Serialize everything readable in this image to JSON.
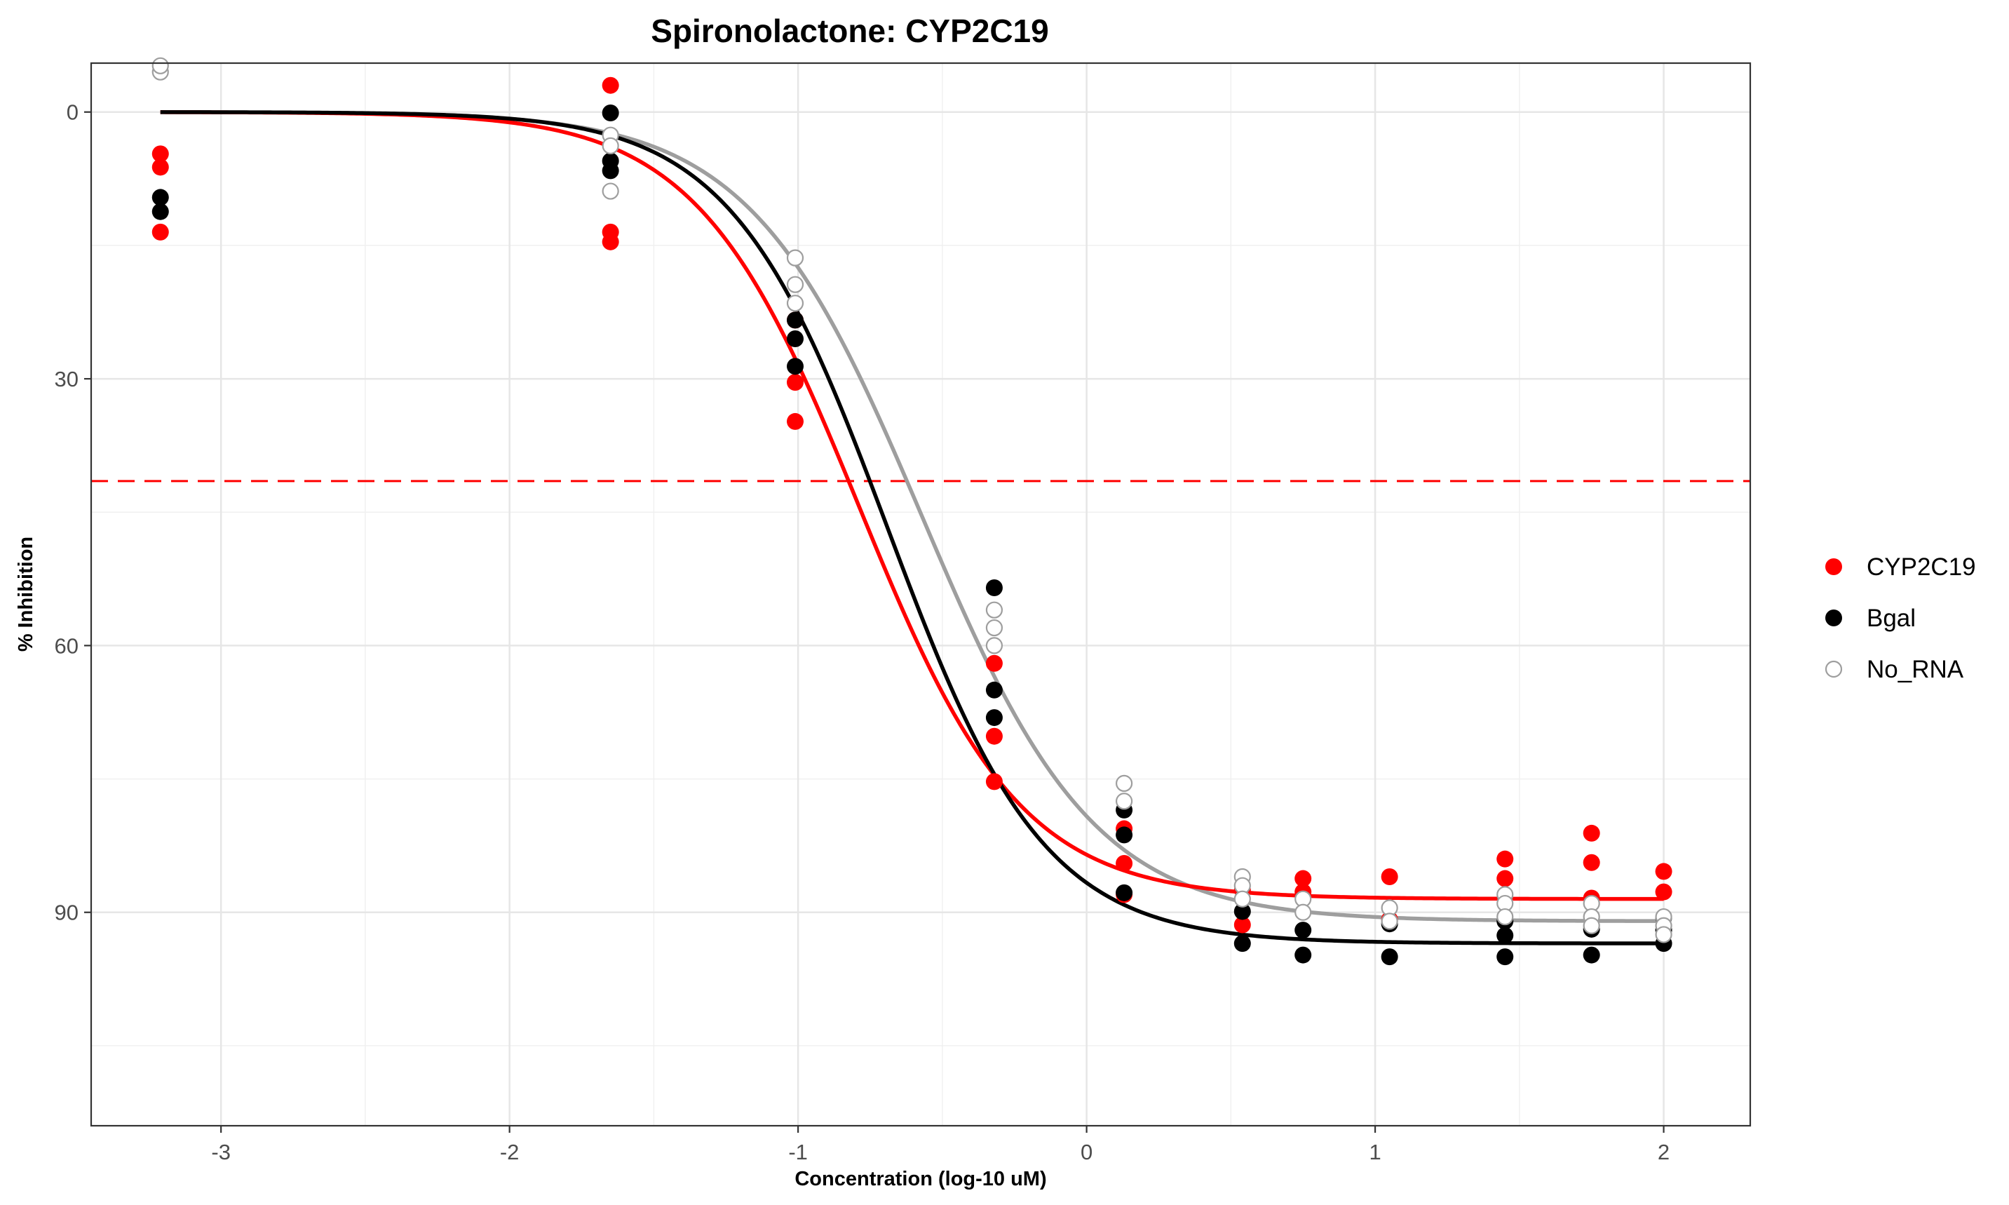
{
  "chart_data": {
    "type": "scatter",
    "title": "Spironolactone: CYP2C19",
    "xlabel": "Concentration (log-10 uM)",
    "ylabel": "% Inhibition",
    "xlim": [
      -3.45,
      2.3
    ],
    "ylim": [
      114,
      -5.5
    ],
    "y_reversed": true,
    "x_ticks": [
      -3,
      -2,
      -1,
      0,
      1,
      2
    ],
    "y_ticks": [
      0,
      30,
      60,
      90
    ],
    "x_tick_labels": [
      "-3",
      "-2",
      "-1",
      "0",
      "1",
      "2"
    ],
    "y_tick_labels": [
      "0",
      "30",
      "60",
      "90"
    ],
    "grid": true,
    "legend_position": "right",
    "reference_line": {
      "y": 41.5,
      "color": "#ff0000",
      "style": "dashed"
    },
    "series": [
      {
        "name": "CYP2C19",
        "color": "#ff0000",
        "marker": "filled-circle",
        "points": [
          [
            -3.21,
            4.7
          ],
          [
            -3.21,
            6.2
          ],
          [
            -3.21,
            13.5
          ],
          [
            -1.65,
            -3.0
          ],
          [
            -1.65,
            13.5
          ],
          [
            -1.65,
            14.6
          ],
          [
            -1.01,
            23.4
          ],
          [
            -1.01,
            30.4
          ],
          [
            -1.01,
            34.8
          ],
          [
            -0.32,
            62.0
          ],
          [
            -0.32,
            70.2
          ],
          [
            -0.32,
            75.3
          ],
          [
            0.13,
            80.6
          ],
          [
            0.13,
            84.5
          ],
          [
            0.13,
            88.0
          ],
          [
            0.54,
            87.5
          ],
          [
            0.54,
            91.4
          ],
          [
            0.75,
            86.2
          ],
          [
            0.75,
            87.7
          ],
          [
            1.05,
            86.0
          ],
          [
            1.05,
            90.8
          ],
          [
            1.45,
            84.0
          ],
          [
            1.45,
            86.2
          ],
          [
            1.75,
            81.1
          ],
          [
            1.75,
            84.4
          ],
          [
            1.75,
            88.4
          ],
          [
            2.0,
            85.4
          ],
          [
            2.0,
            87.7
          ]
        ],
        "curve": {
          "top": 0,
          "bottom": 88.5,
          "logIC50": -0.79,
          "hill": 1.55
        }
      },
      {
        "name": "Bgal",
        "color": "#000000",
        "marker": "filled-circle",
        "points": [
          [
            -3.21,
            9.6
          ],
          [
            -3.21,
            11.2
          ],
          [
            -1.65,
            0.1
          ],
          [
            -1.65,
            5.5
          ],
          [
            -1.65,
            6.6
          ],
          [
            -1.01,
            23.4
          ],
          [
            -1.01,
            25.5
          ],
          [
            -1.01,
            28.6
          ],
          [
            -0.32,
            53.5
          ],
          [
            -0.32,
            65.0
          ],
          [
            -0.32,
            68.1
          ],
          [
            0.13,
            78.5
          ],
          [
            0.13,
            81.3
          ],
          [
            0.13,
            87.8
          ],
          [
            0.54,
            89.9
          ],
          [
            0.54,
            93.5
          ],
          [
            0.75,
            92.0
          ],
          [
            0.75,
            94.8
          ],
          [
            1.05,
            91.3
          ],
          [
            1.05,
            95.0
          ],
          [
            1.45,
            91.0
          ],
          [
            1.45,
            92.6
          ],
          [
            1.45,
            95.0
          ],
          [
            1.75,
            91.9
          ],
          [
            1.75,
            94.8
          ],
          [
            2.0,
            90.6
          ],
          [
            2.0,
            92.0
          ],
          [
            2.0,
            93.5
          ]
        ],
        "curve": {
          "top": 0,
          "bottom": 93.5,
          "logIC50": -0.69,
          "hill": 1.6
        }
      },
      {
        "name": "No_RNA",
        "color": "#9e9e9e",
        "marker": "open-circle",
        "points": [
          [
            -3.21,
            -4.5
          ],
          [
            -3.21,
            -5.2
          ],
          [
            -1.65,
            2.6
          ],
          [
            -1.65,
            3.8
          ],
          [
            -1.65,
            8.9
          ],
          [
            -1.01,
            16.4
          ],
          [
            -1.01,
            19.4
          ],
          [
            -1.01,
            21.5
          ],
          [
            -0.32,
            56.0
          ],
          [
            -0.32,
            58.0
          ],
          [
            -0.32,
            60.0
          ],
          [
            0.13,
            75.5
          ],
          [
            0.13,
            77.5
          ],
          [
            0.54,
            86.0
          ],
          [
            0.54,
            87.0
          ],
          [
            0.54,
            88.5
          ],
          [
            0.75,
            88.5
          ],
          [
            0.75,
            90.0
          ],
          [
            1.05,
            89.5
          ],
          [
            1.05,
            91.0
          ],
          [
            1.45,
            88.0
          ],
          [
            1.45,
            89.0
          ],
          [
            1.45,
            90.5
          ],
          [
            1.75,
            89.0
          ],
          [
            1.75,
            90.5
          ],
          [
            1.75,
            91.5
          ],
          [
            2.0,
            90.5
          ],
          [
            2.0,
            91.5
          ],
          [
            2.0,
            92.5
          ]
        ],
        "curve": {
          "top": 0,
          "bottom": 91.0,
          "logIC50": -0.57,
          "hill": 1.45
        }
      }
    ]
  }
}
